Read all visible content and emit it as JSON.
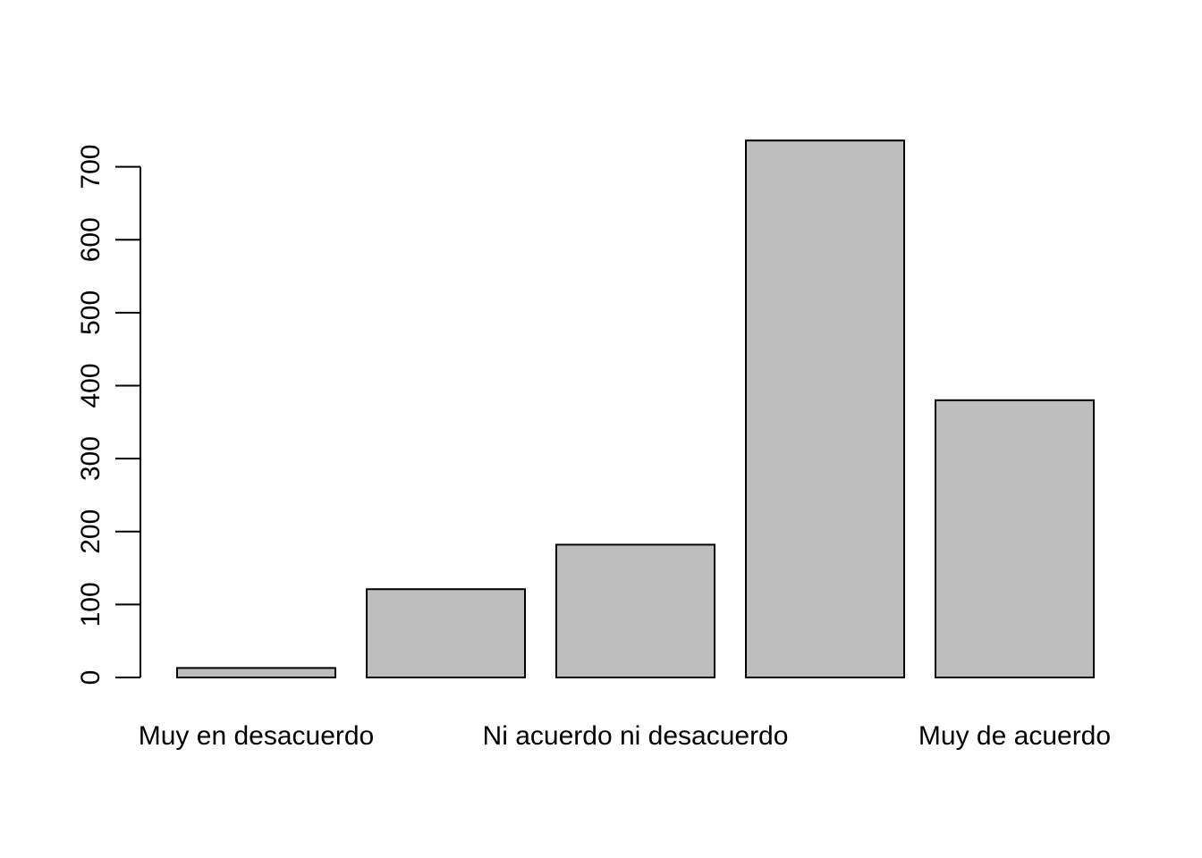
{
  "chart_data": {
    "type": "bar",
    "title": "",
    "xlabel": "",
    "ylabel": "",
    "categories": [
      "Muy en desacuerdo",
      "",
      "Ni acuerdo ni desacuerdo",
      "",
      "Muy de acuerdo"
    ],
    "values": [
      13,
      121,
      182,
      736,
      380
    ],
    "ylim": [
      0,
      736
    ],
    "y_ticks": [
      0,
      100,
      200,
      300,
      400,
      500,
      600,
      700
    ],
    "grid": false,
    "colors": {
      "bar_fill": "#bebebe",
      "bar_stroke": "#000000"
    }
  }
}
